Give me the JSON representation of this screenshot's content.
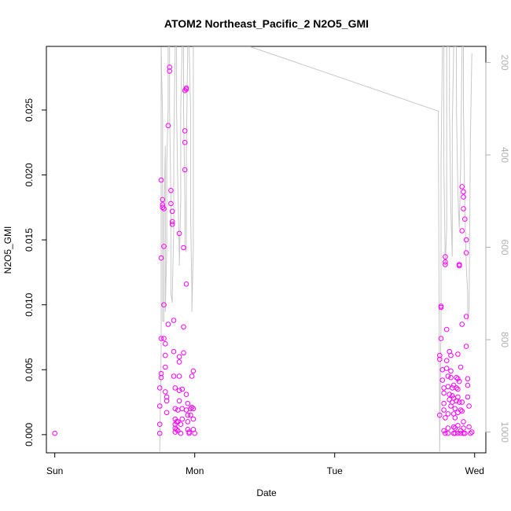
{
  "chart_data": {
    "type": "scatter",
    "title": "ATOM2 Northeast_Pacific_2 N2O5_GMI",
    "xlabel": "Date",
    "ylabel": "N2O5_GMI",
    "x_axis": {
      "unit": "days",
      "range": [
        -0.06,
        3.08
      ],
      "ticks": [
        {
          "at": 0,
          "label": "Sun"
        },
        {
          "at": 1,
          "label": "Mon"
        },
        {
          "at": 2,
          "label": "Tue"
        },
        {
          "at": 3,
          "label": "Wed"
        }
      ]
    },
    "y_axis": {
      "range": [
        -0.0014,
        0.0299
      ],
      "ticks": [
        {
          "at": 0.0,
          "label": "0.000"
        },
        {
          "at": 0.005,
          "label": "0.005"
        },
        {
          "at": 0.01,
          "label": "0.010"
        },
        {
          "at": 0.015,
          "label": "0.015"
        },
        {
          "at": 0.02,
          "label": "0.020"
        },
        {
          "at": 0.025,
          "label": "0.025"
        }
      ]
    },
    "y2_axis": {
      "range": [
        1045,
        165
      ],
      "ticks": [
        {
          "at": 200,
          "label": "200"
        },
        {
          "at": 400,
          "label": "400"
        },
        {
          "at": 600,
          "label": "600"
        },
        {
          "at": 800,
          "label": "800"
        },
        {
          "at": 1000,
          "label": "1000"
        }
      ]
    },
    "series": [
      {
        "color": "#ff00ff",
        "marker": "open-circle",
        "axis": "left",
        "points": [
          [
            0.0,
            0.0001
          ],
          [
            0.75,
            0.0001
          ],
          [
            0.75,
            0.0008
          ],
          [
            0.75,
            0.0022
          ],
          [
            0.75,
            0.0036
          ],
          [
            0.76,
            0.0044
          ],
          [
            0.76,
            0.0047
          ],
          [
            0.76,
            0.0074
          ],
          [
            0.76,
            0.0136
          ],
          [
            0.76,
            0.0196
          ],
          [
            0.77,
            0.0181
          ],
          [
            0.77,
            0.0177
          ],
          [
            0.77,
            0.0175
          ],
          [
            0.78,
            0.0174
          ],
          [
            0.78,
            0.0145
          ],
          [
            0.78,
            0.01
          ],
          [
            0.78,
            0.0074
          ],
          [
            0.79,
            0.007
          ],
          [
            0.79,
            0.0061
          ],
          [
            0.79,
            0.0052
          ],
          [
            0.79,
            0.0033
          ],
          [
            0.8,
            0.0026
          ],
          [
            0.8,
            0.0029
          ],
          [
            0.8,
            0.0017
          ],
          [
            0.81,
            0.0238
          ],
          [
            0.81,
            0.0085
          ],
          [
            0.82,
            0.028
          ],
          [
            0.82,
            0.0283
          ],
          [
            0.83,
            0.0188
          ],
          [
            0.83,
            0.0178
          ],
          [
            0.84,
            0.0172
          ],
          [
            0.84,
            0.0164
          ],
          [
            0.84,
            0.0162
          ],
          [
            0.85,
            0.0088
          ],
          [
            0.85,
            0.0064
          ],
          [
            0.85,
            0.0045
          ],
          [
            0.86,
            0.0036
          ],
          [
            0.86,
            0.002
          ],
          [
            0.86,
            0.0012
          ],
          [
            0.86,
            0.0008
          ],
          [
            0.86,
            0.0005
          ],
          [
            0.86,
            0.0002
          ],
          [
            0.87,
            0.001
          ],
          [
            0.87,
            0.0004
          ],
          [
            0.88,
            0.0003
          ],
          [
            0.88,
            0.001
          ],
          [
            0.88,
            0.0019
          ],
          [
            0.89,
            0.0026
          ],
          [
            0.89,
            0.0034
          ],
          [
            0.89,
            0.0045
          ],
          [
            0.89,
            0.0056
          ],
          [
            0.89,
            0.006
          ],
          [
            0.89,
            0.0155
          ],
          [
            0.9,
            0.0001
          ],
          [
            0.9,
            0.0008
          ],
          [
            0.91,
            0.0012
          ],
          [
            0.91,
            0.002
          ],
          [
            0.91,
            0.0035
          ],
          [
            0.92,
            0.0063
          ],
          [
            0.92,
            0.0083
          ],
          [
            0.92,
            0.0144
          ],
          [
            0.93,
            0.0204
          ],
          [
            0.93,
            0.0234
          ],
          [
            0.93,
            0.0225
          ],
          [
            0.93,
            0.0265
          ],
          [
            0.94,
            0.0267
          ],
          [
            0.94,
            0.0266
          ],
          [
            0.94,
            0.0116
          ],
          [
            0.94,
            0.0031
          ],
          [
            0.94,
            0.0019
          ],
          [
            0.95,
            0.0024
          ],
          [
            0.95,
            0.0015
          ],
          [
            0.95,
            0.001
          ],
          [
            0.95,
            0.0004
          ],
          [
            0.96,
            0.0002
          ],
          [
            0.96,
            0.0001
          ],
          [
            0.97,
            0.002
          ],
          [
            0.97,
            0.0015
          ],
          [
            0.98,
            0.0045
          ],
          [
            0.98,
            0.0021
          ],
          [
            0.99,
            0.0012
          ],
          [
            0.99,
            0.002
          ],
          [
            0.99,
            0.0004
          ],
          [
            0.99,
            0.0049
          ],
          [
            1.0,
            0.0001
          ],
          [
            2.75,
            0.0058
          ],
          [
            2.75,
            0.0061
          ],
          [
            2.75,
            0.0015
          ],
          [
            2.76,
            0.0099
          ],
          [
            2.76,
            0.0098
          ],
          [
            2.76,
            0.0074
          ],
          [
            2.77,
            0.005
          ],
          [
            2.77,
            0.0042
          ],
          [
            2.78,
            0.0036
          ],
          [
            2.78,
            0.0032
          ],
          [
            2.78,
            0.0024
          ],
          [
            2.78,
            0.0019
          ],
          [
            2.78,
            0.0003
          ],
          [
            2.79,
            0.0001
          ],
          [
            2.79,
            0.0013
          ],
          [
            2.79,
            0.0137
          ],
          [
            2.79,
            0.0133
          ],
          [
            2.79,
            0.0131
          ],
          [
            2.8,
            0.0081
          ],
          [
            2.8,
            0.0057
          ],
          [
            2.8,
            0.0051
          ],
          [
            2.81,
            0.0045
          ],
          [
            2.81,
            0.0037
          ],
          [
            2.81,
            0.0016
          ],
          [
            2.81,
            0.0005
          ],
          [
            2.81,
            0.0001
          ],
          [
            2.82,
            0.0031
          ],
          [
            2.82,
            0.0027
          ],
          [
            2.82,
            0.0064
          ],
          [
            2.83,
            0.0061
          ],
          [
            2.83,
            0.0049
          ],
          [
            2.83,
            0.0044
          ],
          [
            2.83,
            0.0022
          ],
          [
            2.84,
            0.0036
          ],
          [
            2.84,
            0.003
          ],
          [
            2.84,
            0.0025
          ],
          [
            2.85,
            0.0038
          ],
          [
            2.85,
            0.0028
          ],
          [
            2.85,
            0.0016
          ],
          [
            2.85,
            0.0006
          ],
          [
            2.85,
            0.0001
          ],
          [
            2.86,
            0.002
          ],
          [
            2.86,
            0.0013
          ],
          [
            2.86,
            0.0005
          ],
          [
            2.86,
            0.0001
          ],
          [
            2.87,
            0.0044
          ],
          [
            2.87,
            0.0036
          ],
          [
            2.87,
            0.0026
          ],
          [
            2.88,
            0.0062
          ],
          [
            2.88,
            0.0043
          ],
          [
            2.88,
            0.0035
          ],
          [
            2.88,
            0.0029
          ],
          [
            2.88,
            0.0017
          ],
          [
            2.88,
            0.0007
          ],
          [
            2.88,
            0.0001
          ],
          [
            2.89,
            0.013
          ],
          [
            2.89,
            0.0131
          ],
          [
            2.89,
            0.0131
          ],
          [
            2.89,
            0.0041
          ],
          [
            2.89,
            0.0025
          ],
          [
            2.9,
            0.0052
          ],
          [
            2.9,
            0.0019
          ],
          [
            2.9,
            0.0003
          ],
          [
            2.9,
            0.0001
          ],
          [
            2.91,
            0.0191
          ],
          [
            2.91,
            0.0157
          ],
          [
            2.91,
            0.0085
          ],
          [
            2.91,
            0.0025
          ],
          [
            2.91,
            0.0018
          ],
          [
            2.92,
            0.0187
          ],
          [
            2.92,
            0.0183
          ],
          [
            2.92,
            0.0174
          ],
          [
            2.92,
            0.001
          ],
          [
            2.92,
            0.0005
          ],
          [
            2.92,
            0.0001
          ],
          [
            2.93,
            0.0166
          ],
          [
            2.93,
            0.0001
          ],
          [
            2.94,
            0.015
          ],
          [
            2.94,
            0.0091
          ],
          [
            2.94,
            0.014
          ],
          [
            2.94,
            0.0068
          ],
          [
            2.95,
            0.0043
          ],
          [
            2.95,
            0.0038
          ],
          [
            2.95,
            0.0029
          ],
          [
            2.96,
            0.0022
          ],
          [
            2.96,
            0.0006
          ],
          [
            2.97,
            0.0001
          ],
          [
            2.98,
            0.0002
          ]
        ]
      },
      {
        "color": "#c8c8c8",
        "marker": "line",
        "axis": "right",
        "points": [
          [
            0.75,
            1043
          ],
          [
            0.76,
            820
          ],
          [
            0.76,
            280
          ],
          [
            0.76,
            166
          ],
          [
            0.77,
            320
          ],
          [
            0.77,
            440
          ],
          [
            0.77,
            760
          ],
          [
            0.78,
            760
          ],
          [
            0.78,
            540
          ],
          [
            0.79,
            380
          ],
          [
            0.79,
            600
          ],
          [
            0.79,
            740
          ],
          [
            0.8,
            600
          ],
          [
            0.8,
            420
          ],
          [
            0.81,
            300
          ],
          [
            0.81,
            166
          ],
          [
            0.82,
            166
          ],
          [
            0.82,
            300
          ],
          [
            0.83,
            500
          ],
          [
            0.83,
            700
          ],
          [
            0.84,
            720
          ],
          [
            0.84,
            700
          ],
          [
            0.85,
            560
          ],
          [
            0.85,
            400
          ],
          [
            0.86,
            166
          ],
          [
            0.87,
            166
          ],
          [
            0.87,
            300
          ],
          [
            0.88,
            480
          ],
          [
            0.89,
            620
          ],
          [
            0.89,
            640
          ],
          [
            0.9,
            500
          ],
          [
            0.9,
            300
          ],
          [
            0.91,
            166
          ],
          [
            0.92,
            166
          ],
          [
            0.92,
            300
          ],
          [
            0.93,
            500
          ],
          [
            0.93,
            600
          ],
          [
            0.94,
            610
          ],
          [
            0.94,
            400
          ],
          [
            0.95,
            166
          ],
          [
            0.96,
            166
          ],
          [
            0.97,
            300
          ],
          [
            0.97,
            520
          ],
          [
            0.98,
            700
          ],
          [
            0.98,
            740
          ],
          [
            0.99,
            600
          ],
          [
            0.99,
            166
          ],
          [
            1.01,
            166
          ],
          [
            1.4,
            166
          ],
          [
            2.74,
            305
          ],
          [
            2.75,
            1043
          ],
          [
            2.76,
            760
          ],
          [
            2.76,
            420
          ],
          [
            2.77,
            166
          ],
          [
            2.78,
            166
          ],
          [
            2.78,
            420
          ],
          [
            2.79,
            640
          ],
          [
            2.8,
            560
          ],
          [
            2.8,
            166
          ],
          [
            2.82,
            166
          ],
          [
            2.82,
            300
          ],
          [
            2.83,
            520
          ],
          [
            2.84,
            620
          ],
          [
            2.84,
            340
          ],
          [
            2.85,
            166
          ],
          [
            2.87,
            166
          ],
          [
            2.87,
            300
          ],
          [
            2.88,
            480
          ],
          [
            2.89,
            560
          ],
          [
            2.9,
            420
          ],
          [
            2.91,
            166
          ],
          [
            2.92,
            166
          ],
          [
            2.92,
            300
          ],
          [
            2.93,
            520
          ],
          [
            2.94,
            640
          ],
          [
            2.95,
            700
          ],
          [
            2.95,
            760
          ],
          [
            2.96,
            740
          ],
          [
            2.97,
            360
          ],
          [
            2.98,
            180
          ]
        ]
      }
    ],
    "grid": false,
    "legend": "none"
  }
}
